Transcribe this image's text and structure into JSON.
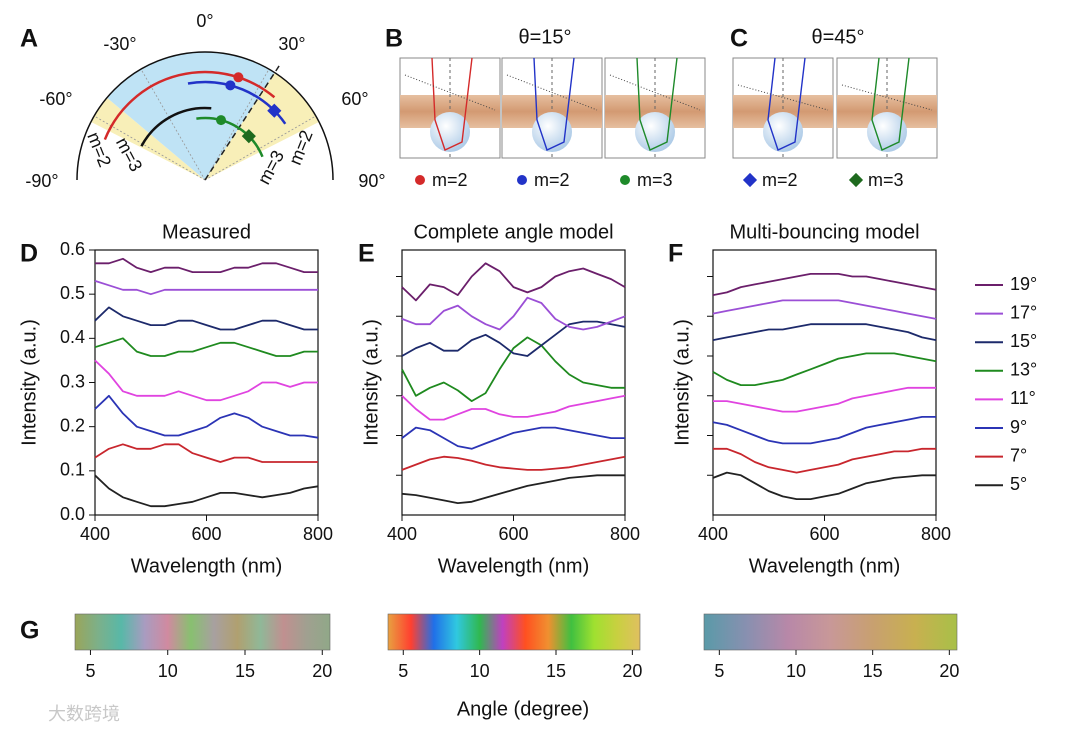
{
  "panels": {
    "letters": [
      "A",
      "B",
      "C",
      "D",
      "E",
      "F",
      "G"
    ],
    "A": {
      "angle_labels": [
        "0°",
        "30°",
        "-30°",
        "60°",
        "-60°",
        "-90°",
        "90°"
      ],
      "modes": [
        {
          "label": "m=2",
          "color": "#d42a2a"
        },
        {
          "label": "m=3",
          "color": "#111111"
        },
        {
          "label": "m=2",
          "color": "#2233c8"
        },
        {
          "label": "m=3",
          "color": "#1e8a2a"
        }
      ]
    },
    "B": {
      "title": "θ=15°",
      "legend": [
        {
          "label": "m=2",
          "color": "#d42a2a",
          "marker": "circle"
        },
        {
          "label": "m=2",
          "color": "#2233c8",
          "marker": "circle"
        },
        {
          "label": "m=3",
          "color": "#1e8a2a",
          "marker": "circle"
        }
      ]
    },
    "C": {
      "title": "θ=45°",
      "legend": [
        {
          "label": "m=2",
          "color": "#2233c8",
          "marker": "diamond"
        },
        {
          "label": "m=3",
          "color": "#1e6a1e",
          "marker": "diamond"
        }
      ]
    },
    "G": {
      "xlim": [
        4,
        20.5
      ],
      "xticks": [
        5,
        10,
        15,
        20
      ],
      "xlabel": "Angle (degree)",
      "bars": [
        {
          "colors": [
            "#9aa55a",
            "#7cb08a",
            "#58b8a8",
            "#a89cc0",
            "#d08aa0",
            "#88c070",
            "#a8a0a0",
            "#b0a070",
            "#90b898",
            "#c09090",
            "#a0a090",
            "#90a888"
          ]
        },
        {
          "colors": [
            "#e8a040",
            "#ff4030",
            "#2070e8",
            "#30c8e0",
            "#30b850",
            "#c040c0",
            "#ff5020",
            "#f09030",
            "#40c040",
            "#a0e030",
            "#c8d040",
            "#e0c060"
          ]
        },
        {
          "colors": [
            "#5a9aa8",
            "#8890b0",
            "#b888a8",
            "#c89898",
            "#c8a070",
            "#c8b050",
            "#a8c048"
          ]
        }
      ]
    },
    "watermark": "大数跨境"
  },
  "chart_data": [
    {
      "type": "line",
      "title": "Measured",
      "xlabel": "Wavelength (nm)",
      "ylabel": "Intensity (a.u.)",
      "x": [
        400,
        425,
        450,
        475,
        500,
        525,
        550,
        575,
        600,
        625,
        650,
        675,
        700,
        725,
        750,
        775,
        800
      ],
      "xlim": [
        400,
        800
      ],
      "xticks": [
        400,
        600,
        800
      ],
      "ylim": [
        0,
        0.6
      ],
      "yticks": [
        {
          "value": 0,
          "label": "0.0"
        },
        0.1,
        0.2,
        0.3,
        0.4,
        0.5,
        0.6
      ],
      "series": [
        {
          "color": "#222222",
          "values": [
            0.09,
            0.06,
            0.04,
            0.03,
            0.02,
            0.02,
            0.025,
            0.03,
            0.04,
            0.05,
            0.05,
            0.045,
            0.04,
            0.045,
            0.05,
            0.06,
            0.065
          ]
        },
        {
          "color": "#c8262d",
          "values": [
            0.13,
            0.15,
            0.16,
            0.15,
            0.15,
            0.16,
            0.16,
            0.14,
            0.13,
            0.12,
            0.13,
            0.13,
            0.12,
            0.12,
            0.12,
            0.12,
            0.12
          ]
        },
        {
          "color": "#2b34b5",
          "values": [
            0.24,
            0.27,
            0.23,
            0.2,
            0.19,
            0.18,
            0.18,
            0.19,
            0.2,
            0.22,
            0.23,
            0.22,
            0.2,
            0.19,
            0.18,
            0.18,
            0.175
          ]
        },
        {
          "color": "#e044e0",
          "values": [
            0.35,
            0.32,
            0.28,
            0.27,
            0.27,
            0.27,
            0.28,
            0.27,
            0.26,
            0.26,
            0.27,
            0.28,
            0.3,
            0.3,
            0.29,
            0.3,
            0.3
          ]
        },
        {
          "color": "#1f8a1f",
          "values": [
            0.38,
            0.39,
            0.4,
            0.37,
            0.36,
            0.36,
            0.37,
            0.37,
            0.38,
            0.39,
            0.39,
            0.38,
            0.37,
            0.36,
            0.36,
            0.37,
            0.37
          ]
        },
        {
          "color": "#1d2a6b",
          "values": [
            0.44,
            0.47,
            0.45,
            0.44,
            0.43,
            0.43,
            0.44,
            0.44,
            0.43,
            0.42,
            0.42,
            0.43,
            0.44,
            0.44,
            0.43,
            0.42,
            0.42
          ]
        },
        {
          "color": "#9b4fd6",
          "values": [
            0.53,
            0.52,
            0.51,
            0.51,
            0.5,
            0.51,
            0.51,
            0.51,
            0.51,
            0.51,
            0.51,
            0.51,
            0.51,
            0.51,
            0.51,
            0.51,
            0.51
          ]
        },
        {
          "color": "#6b1f6b",
          "values": [
            0.57,
            0.57,
            0.58,
            0.56,
            0.55,
            0.56,
            0.56,
            0.55,
            0.55,
            0.55,
            0.56,
            0.56,
            0.57,
            0.57,
            0.56,
            0.55,
            0.55
          ]
        }
      ]
    },
    {
      "type": "line",
      "title": "Complete angle model",
      "xlabel": "Wavelength (nm)",
      "ylabel": "Intensity (a.u.)",
      "x": [
        400,
        425,
        450,
        475,
        500,
        525,
        550,
        575,
        600,
        625,
        650,
        675,
        700,
        725,
        750,
        775,
        800
      ],
      "xlim": [
        400,
        800
      ],
      "xticks": [
        400,
        600,
        800
      ],
      "ylim": [
        0,
        1
      ],
      "yticks": [
        0.15,
        0.3,
        0.45,
        0.6,
        0.75,
        0.9
      ],
      "series": [
        {
          "color": "#222222",
          "values": [
            0.08,
            0.075,
            0.065,
            0.055,
            0.045,
            0.05,
            0.065,
            0.08,
            0.095,
            0.11,
            0.12,
            0.13,
            0.14,
            0.145,
            0.15,
            0.15,
            0.15
          ]
        },
        {
          "color": "#c8262d",
          "values": [
            0.17,
            0.19,
            0.21,
            0.22,
            0.215,
            0.205,
            0.19,
            0.18,
            0.175,
            0.17,
            0.17,
            0.175,
            0.18,
            0.19,
            0.2,
            0.21,
            0.22
          ]
        },
        {
          "color": "#2b34b5",
          "values": [
            0.29,
            0.33,
            0.32,
            0.29,
            0.26,
            0.25,
            0.27,
            0.29,
            0.31,
            0.32,
            0.33,
            0.33,
            0.32,
            0.31,
            0.3,
            0.29,
            0.29
          ]
        },
        {
          "color": "#e044e0",
          "values": [
            0.45,
            0.4,
            0.36,
            0.36,
            0.38,
            0.4,
            0.4,
            0.38,
            0.37,
            0.37,
            0.38,
            0.39,
            0.41,
            0.42,
            0.43,
            0.44,
            0.45
          ]
        },
        {
          "color": "#1f8a1f",
          "values": [
            0.55,
            0.45,
            0.48,
            0.5,
            0.47,
            0.43,
            0.46,
            0.55,
            0.63,
            0.67,
            0.64,
            0.58,
            0.53,
            0.5,
            0.49,
            0.48,
            0.48
          ]
        },
        {
          "color": "#1d2a6b",
          "values": [
            0.6,
            0.63,
            0.65,
            0.62,
            0.62,
            0.66,
            0.68,
            0.65,
            0.61,
            0.6,
            0.64,
            0.68,
            0.72,
            0.73,
            0.73,
            0.72,
            0.71
          ]
        },
        {
          "color": "#9b4fd6",
          "values": [
            0.74,
            0.72,
            0.72,
            0.77,
            0.79,
            0.75,
            0.72,
            0.7,
            0.75,
            0.82,
            0.8,
            0.74,
            0.71,
            0.7,
            0.71,
            0.73,
            0.75
          ]
        },
        {
          "color": "#6b1f6b",
          "values": [
            0.86,
            0.81,
            0.87,
            0.86,
            0.83,
            0.9,
            0.95,
            0.92,
            0.86,
            0.84,
            0.86,
            0.9,
            0.92,
            0.93,
            0.91,
            0.89,
            0.86
          ]
        }
      ]
    },
    {
      "type": "line",
      "title": "Multi-bouncing model",
      "xlabel": "Wavelength (nm)",
      "ylabel": "Intensity (a.u.)",
      "x": [
        400,
        425,
        450,
        475,
        500,
        525,
        550,
        575,
        600,
        625,
        650,
        675,
        700,
        725,
        750,
        775,
        800
      ],
      "xlim": [
        400,
        800
      ],
      "xticks": [
        400,
        600,
        800
      ],
      "ylim": [
        0,
        1
      ],
      "yticks": [
        0.15,
        0.3,
        0.45,
        0.6,
        0.75,
        0.9
      ],
      "legend": "outside right",
      "series": [
        {
          "name": "5°",
          "color": "#222222",
          "values": [
            0.14,
            0.16,
            0.15,
            0.12,
            0.09,
            0.07,
            0.06,
            0.06,
            0.07,
            0.08,
            0.1,
            0.12,
            0.13,
            0.14,
            0.145,
            0.15,
            0.15
          ]
        },
        {
          "name": "7°",
          "color": "#c8262d",
          "values": [
            0.25,
            0.25,
            0.23,
            0.2,
            0.18,
            0.17,
            0.16,
            0.17,
            0.18,
            0.19,
            0.21,
            0.22,
            0.23,
            0.24,
            0.24,
            0.25,
            0.25
          ]
        },
        {
          "name": "9°",
          "color": "#2b34b5",
          "values": [
            0.35,
            0.34,
            0.32,
            0.3,
            0.28,
            0.27,
            0.27,
            0.27,
            0.28,
            0.29,
            0.31,
            0.33,
            0.34,
            0.35,
            0.36,
            0.37,
            0.37
          ]
        },
        {
          "name": "11°",
          "color": "#e044e0",
          "values": [
            0.43,
            0.43,
            0.42,
            0.41,
            0.4,
            0.39,
            0.39,
            0.4,
            0.41,
            0.42,
            0.44,
            0.45,
            0.46,
            0.47,
            0.48,
            0.48,
            0.48
          ]
        },
        {
          "name": "13°",
          "color": "#1f8a1f",
          "values": [
            0.54,
            0.51,
            0.49,
            0.49,
            0.5,
            0.51,
            0.53,
            0.55,
            0.57,
            0.59,
            0.6,
            0.61,
            0.61,
            0.61,
            0.6,
            0.59,
            0.58
          ]
        },
        {
          "name": "15°",
          "color": "#1d2a6b",
          "values": [
            0.66,
            0.67,
            0.68,
            0.69,
            0.7,
            0.7,
            0.71,
            0.72,
            0.72,
            0.72,
            0.72,
            0.72,
            0.71,
            0.7,
            0.69,
            0.67,
            0.66
          ]
        },
        {
          "name": "17°",
          "color": "#9b4fd6",
          "values": [
            0.76,
            0.77,
            0.78,
            0.79,
            0.8,
            0.81,
            0.81,
            0.81,
            0.81,
            0.81,
            0.8,
            0.79,
            0.78,
            0.77,
            0.76,
            0.75,
            0.74
          ]
        },
        {
          "name": "19°",
          "color": "#6b1f6b",
          "values": [
            0.83,
            0.84,
            0.86,
            0.87,
            0.88,
            0.89,
            0.9,
            0.91,
            0.91,
            0.91,
            0.9,
            0.9,
            0.89,
            0.88,
            0.87,
            0.86,
            0.85
          ]
        }
      ]
    }
  ]
}
